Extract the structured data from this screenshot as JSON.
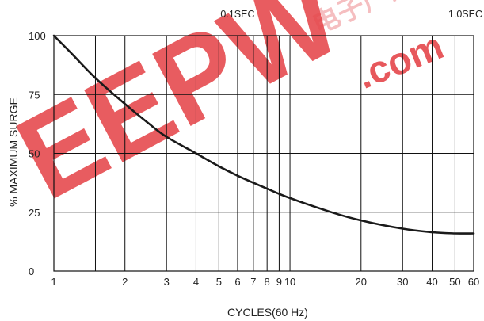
{
  "chart_data": {
    "type": "line",
    "title": "",
    "xlabel": "CYCLES(60 Hz)",
    "ylabel": "% MAXIMUM SURGE",
    "xscale": "log",
    "xlim": [
      1,
      60
    ],
    "ylim": [
      0,
      100
    ],
    "xticks": [
      1,
      2,
      3,
      4,
      5,
      6,
      7,
      8,
      9,
      10,
      20,
      30,
      40,
      50,
      60
    ],
    "xtick_labels": [
      "1",
      "2",
      "3",
      "4",
      "5",
      "6",
      "7",
      "8",
      "9",
      "10",
      "20",
      "30",
      "40",
      "50",
      "60"
    ],
    "yticks": [
      0,
      25,
      50,
      75,
      100
    ],
    "ytick_labels": [
      "0",
      "25",
      "50",
      "75",
      "100"
    ],
    "x_minor_gridlines": [
      1.5
    ],
    "grid": true,
    "top_annotations": [
      {
        "x": 6,
        "text": "0.1SEC"
      },
      {
        "x": 60,
        "text": "1.0SEC"
      }
    ],
    "series": [
      {
        "x": [
          1,
          1.2,
          1.5,
          2,
          2.5,
          3,
          4,
          5,
          6,
          7,
          8,
          10,
          15,
          20,
          30,
          40,
          50,
          60
        ],
        "y": [
          100,
          92,
          82,
          71,
          63,
          57,
          50,
          44.5,
          40.5,
          37.5,
          35,
          31,
          25,
          21.5,
          18,
          16.5,
          16,
          16
        ]
      }
    ]
  },
  "watermark": {
    "logo_text": "EEPW",
    "dot_com": ".com",
    "chinese": "电子产品",
    "color": "#e0262a"
  }
}
